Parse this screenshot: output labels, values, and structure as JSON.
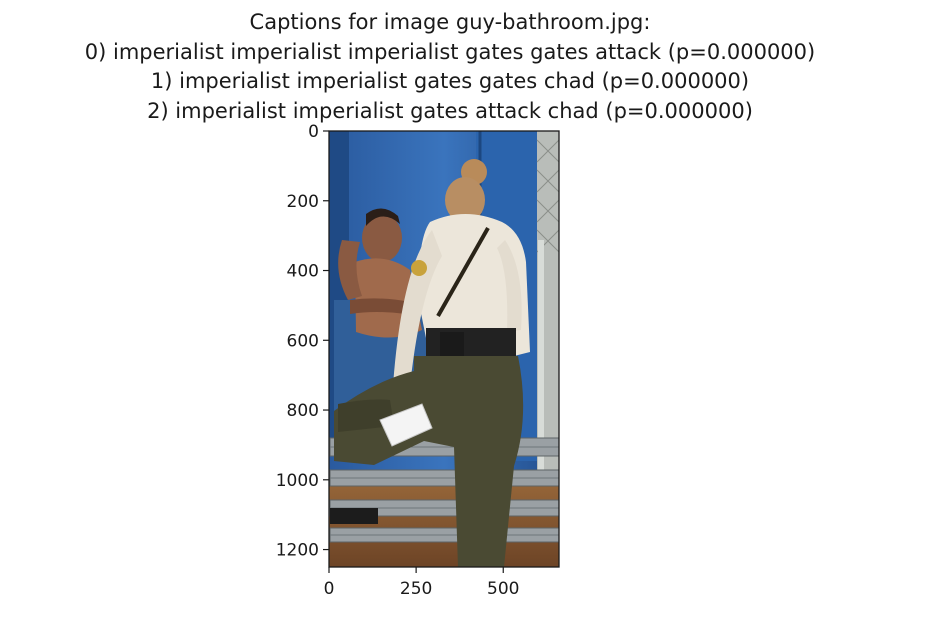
{
  "chart_data": {
    "type": "image",
    "title_lines": [
      "Captions for image guy-bathroom.jpg:",
      "0) imperialist imperialist imperialist gates gates attack (p=0.000000)",
      "1) imperialist imperialist gates gates chad (p=0.000000)",
      "2) imperialist imperialist gates attack chad (p=0.000000)"
    ],
    "xlabel": "",
    "ylabel": "",
    "xlim": [
      0,
      660
    ],
    "ylim": [
      1250,
      0
    ],
    "x_ticks": [
      0,
      250,
      500
    ],
    "y_ticks": [
      0,
      200,
      400,
      600,
      800,
      1000,
      1200
    ],
    "image_content": "officer standing beside a man seated inside a blue portable toilet",
    "colors": {
      "toilet_blue": "#2f63a8",
      "shirt": "#ece6da",
      "pants": "#4a4a33",
      "ground": "#8a5a32"
    }
  }
}
